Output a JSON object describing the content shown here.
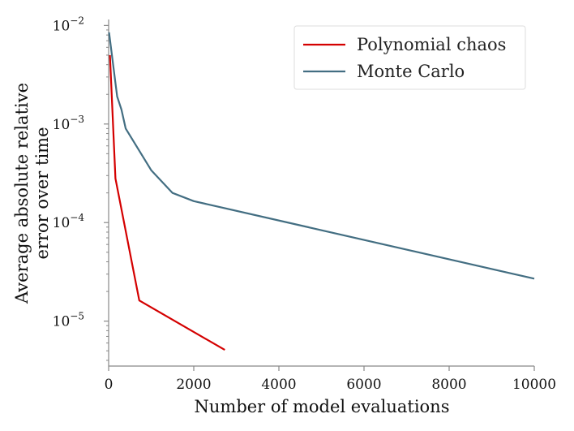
{
  "chart_data": {
    "type": "line",
    "title": "",
    "xlabel": "Number of model evaluations",
    "ylabel": [
      "Average absolute relative",
      "error over time"
    ],
    "xscale": "linear",
    "yscale": "log",
    "xlim": [
      0,
      10000
    ],
    "ylim": [
      3.5e-06,
      0.0115
    ],
    "xticks": [
      0,
      2000,
      4000,
      6000,
      8000,
      10000
    ],
    "xtick_labels": [
      "0",
      "2000",
      "4000",
      "6000",
      "8000",
      "10000"
    ],
    "yticks": [
      {
        "value": 1e-05,
        "base": "10",
        "exp": "−5"
      },
      {
        "value": 0.0001,
        "base": "10",
        "exp": "−4"
      },
      {
        "value": 0.001,
        "base": "10",
        "exp": "−3"
      },
      {
        "value": 0.01,
        "base": "10",
        "exp": "−2"
      }
    ],
    "grid": false,
    "legend_position": "top-right",
    "series": [
      {
        "name": "Polynomial chaos",
        "color": "#d40000",
        "x": [
          30,
          160,
          720,
          2730
        ],
        "y": [
          0.005,
          0.00028,
          1.62e-05,
          5.1e-06
        ]
      },
      {
        "name": "Monte Carlo",
        "color": "#436e82",
        "x": [
          10,
          200,
          300,
          400,
          1000,
          1500,
          2000,
          10000
        ],
        "y": [
          0.0085,
          0.0019,
          0.0014,
          0.0009,
          0.00034,
          0.0002,
          0.000165,
          2.7e-05
        ]
      }
    ]
  }
}
